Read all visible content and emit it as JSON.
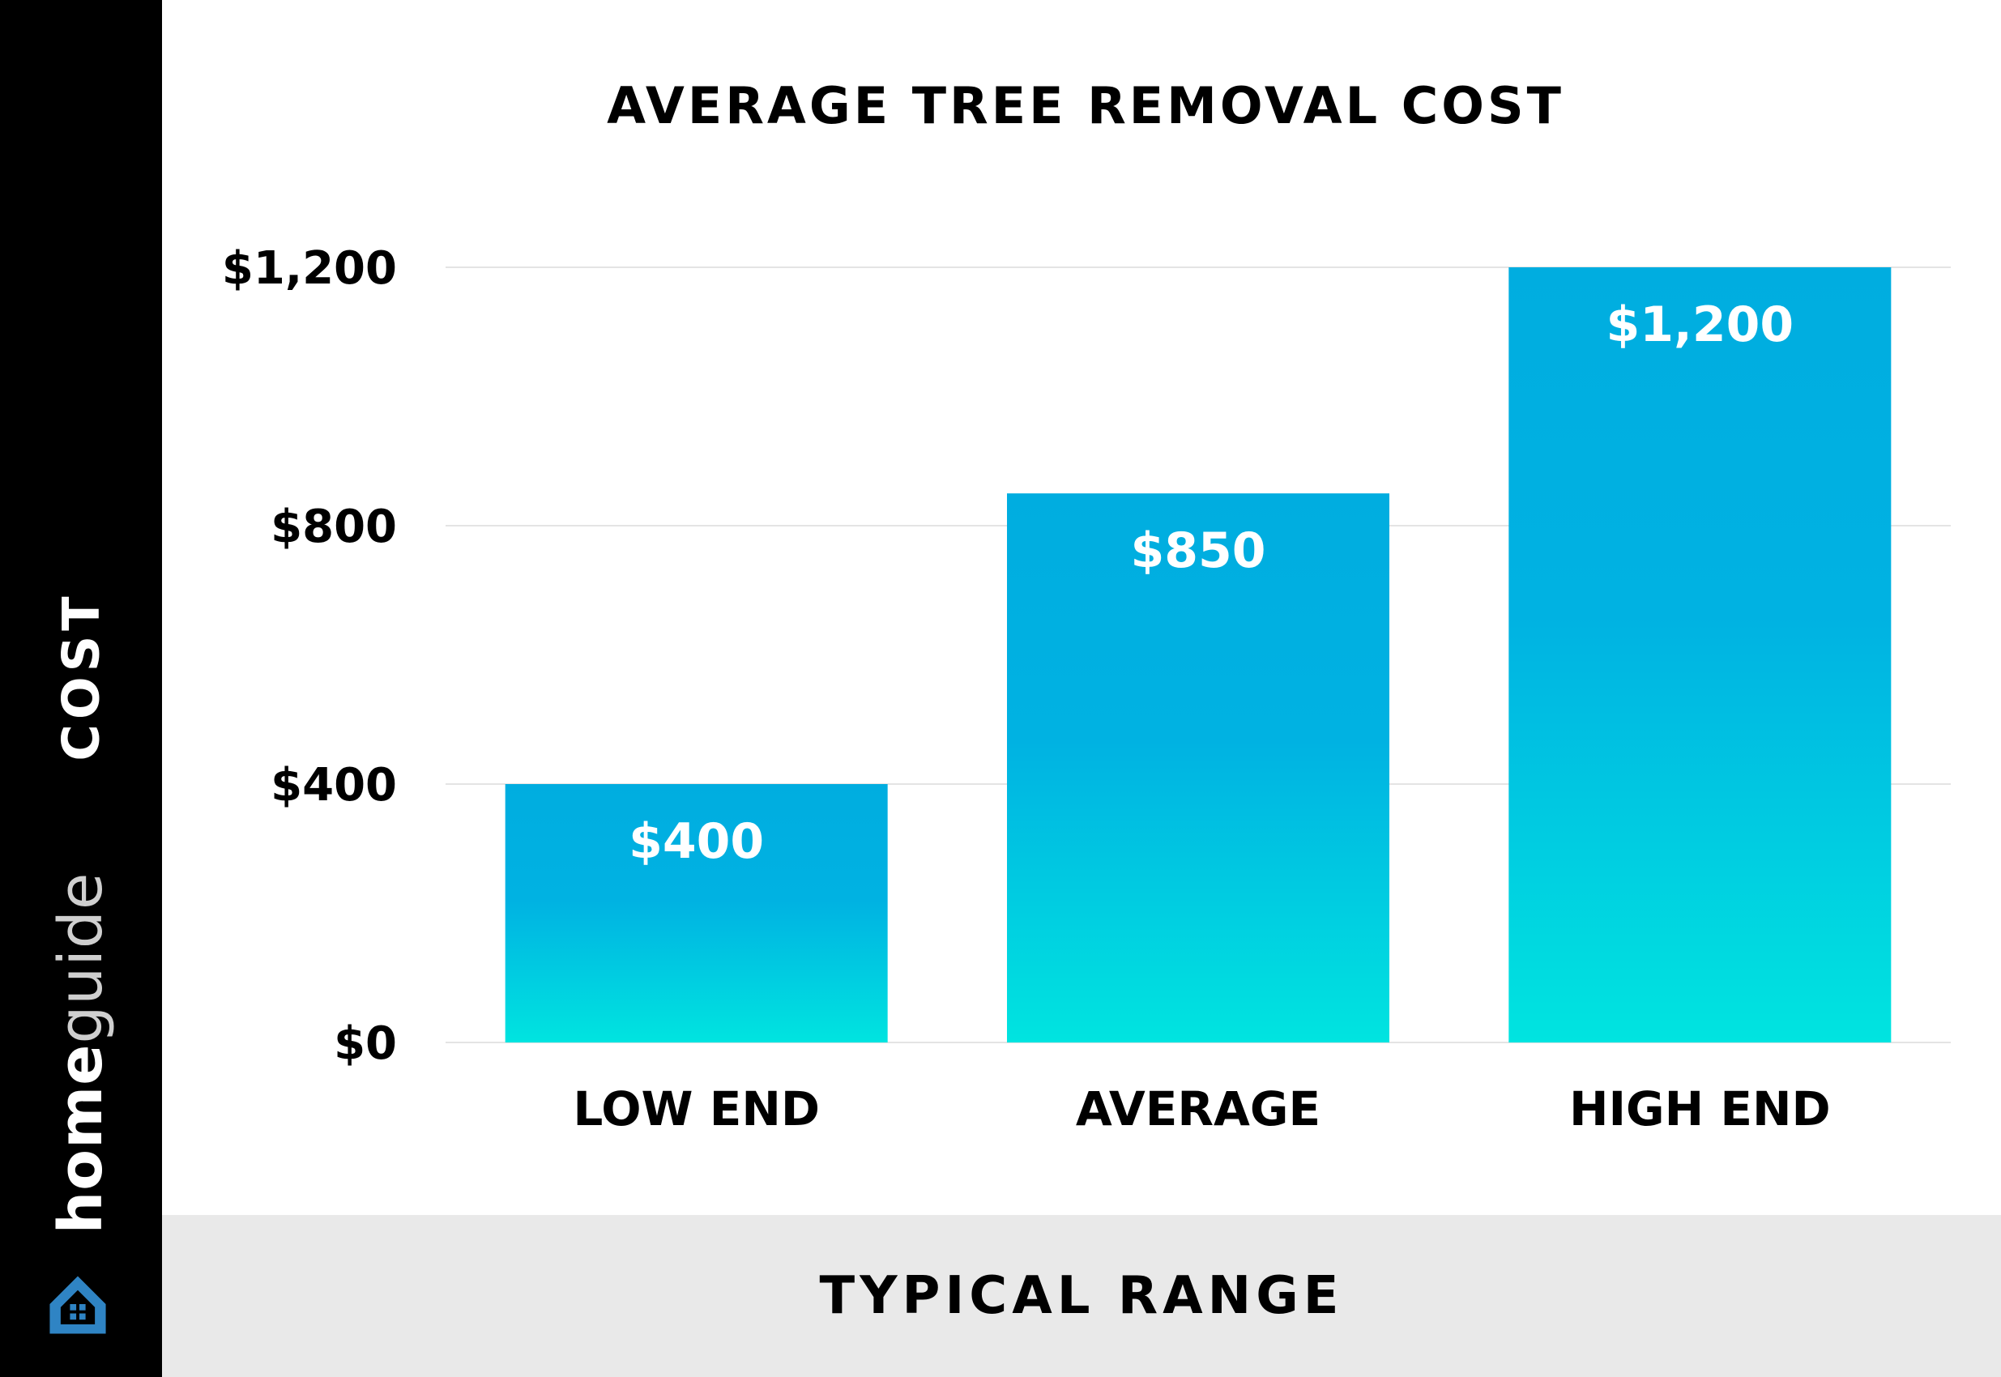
{
  "brand": {
    "part1": "home",
    "part2": "guide"
  },
  "colors": {
    "bar_top": "#00ade0",
    "bar_bottom": "#00e4e0",
    "sidebar": "#000000",
    "xbar": "#e9e9e9",
    "grid": "#e4e4e4"
  },
  "chart_data": {
    "type": "bar",
    "title": "AVERAGE TREE REMOVAL COST",
    "xlabel": "TYPICAL RANGE",
    "ylabel": "COST",
    "categories": [
      "LOW END",
      "AVERAGE",
      "HIGH END"
    ],
    "values": [
      400,
      850,
      1200
    ],
    "data_labels": [
      "$400",
      "$850",
      "$1,200"
    ],
    "ylim": [
      0,
      1200
    ],
    "yticks": [
      0,
      400,
      800,
      1200
    ],
    "ytick_labels": [
      "$0",
      "$400",
      "$800",
      "$1,200"
    ],
    "grid": true
  }
}
